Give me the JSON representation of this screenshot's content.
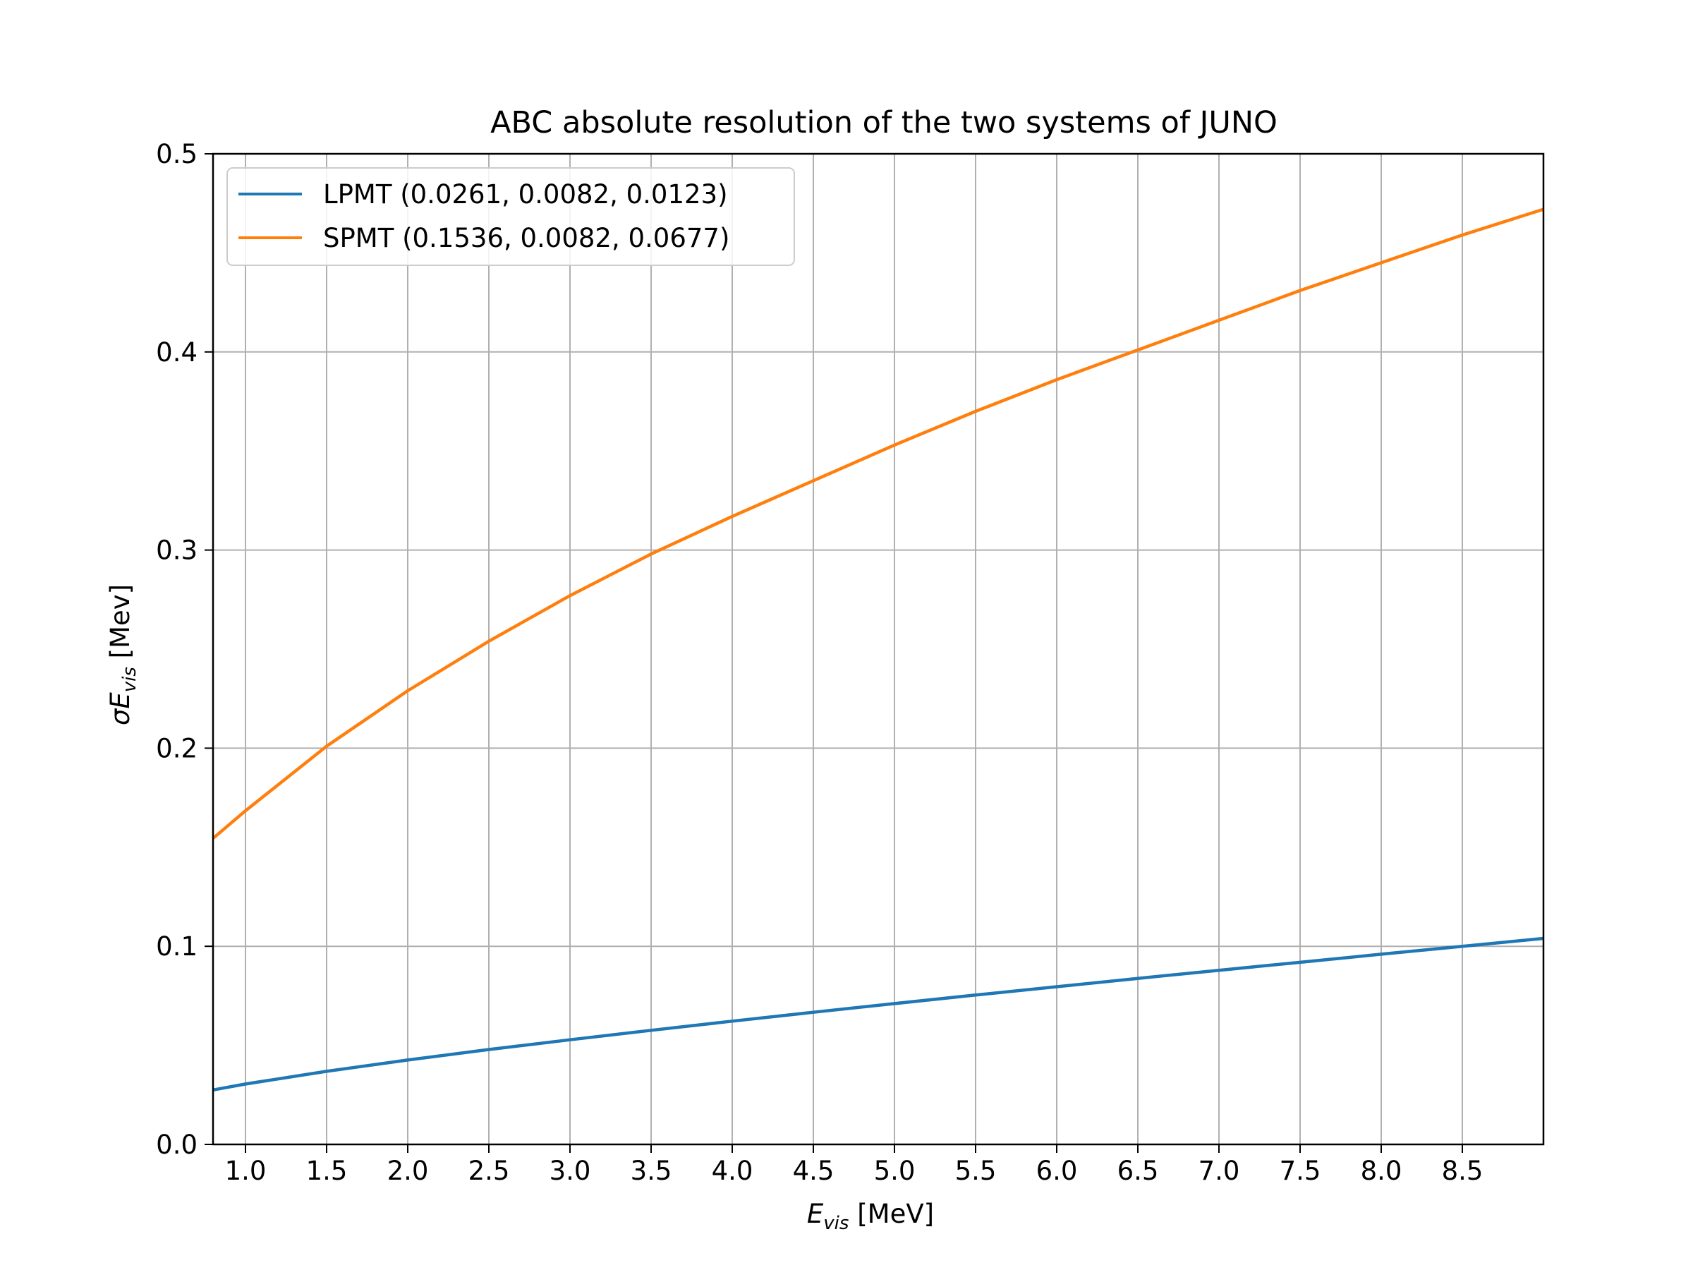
{
  "chart_data": {
    "type": "line",
    "title": "ABC absolute resolution of the two systems of JUNO",
    "xlabel": {
      "main": "E",
      "sub": "vis",
      "unit": " [MeV]"
    },
    "ylabel": {
      "prefix": "σE",
      "sub": "vis",
      "unit": " [Mev]"
    },
    "xlim": [
      0.8,
      9.0
    ],
    "ylim": [
      0.0,
      0.5
    ],
    "xticks": [
      1.0,
      1.5,
      2.0,
      2.5,
      3.0,
      3.5,
      4.0,
      4.5,
      5.0,
      5.5,
      6.0,
      6.5,
      7.0,
      7.5,
      8.0,
      8.5
    ],
    "xtick_labels": [
      "1.0",
      "1.5",
      "2.0",
      "2.5",
      "3.0",
      "3.5",
      "4.0",
      "4.5",
      "5.0",
      "5.5",
      "6.0",
      "6.5",
      "7.0",
      "7.5",
      "8.0",
      "8.5"
    ],
    "yticks": [
      0.0,
      0.1,
      0.2,
      0.3,
      0.4,
      0.5
    ],
    "ytick_labels": [
      "0.0",
      "0.1",
      "0.2",
      "0.3",
      "0.4",
      "0.5"
    ],
    "grid": true,
    "legend_position": "top-left",
    "series": [
      {
        "name": "LPMT (0.0261, 0.0082, 0.0123)",
        "color": "#1f77b4",
        "x": [
          0.8,
          1.0,
          1.5,
          2.0,
          2.5,
          3.0,
          3.5,
          4.0,
          4.5,
          5.0,
          5.5,
          6.0,
          6.5,
          7.0,
          7.5,
          8.0,
          8.5,
          9.0
        ],
        "y": [
          0.0275,
          0.0305,
          0.0369,
          0.0426,
          0.0479,
          0.0528,
          0.0576,
          0.0622,
          0.0667,
          0.0711,
          0.0754,
          0.0796,
          0.0838,
          0.0879,
          0.0919,
          0.096,
          0.1,
          0.104
        ]
      },
      {
        "name": "SPMT (0.1536, 0.0082, 0.0677)",
        "color": "#ff7f0e",
        "x": [
          0.8,
          1.0,
          1.5,
          2.0,
          2.5,
          3.0,
          3.5,
          4.0,
          4.5,
          5.0,
          5.5,
          6.0,
          6.5,
          7.0,
          7.5,
          8.0,
          8.5,
          9.0
        ],
        "y": [
          0.1545,
          0.1684,
          0.201,
          0.229,
          0.254,
          0.277,
          0.298,
          0.317,
          0.335,
          0.353,
          0.37,
          0.386,
          0.401,
          0.416,
          0.431,
          0.445,
          0.459,
          0.472
        ]
      }
    ]
  }
}
